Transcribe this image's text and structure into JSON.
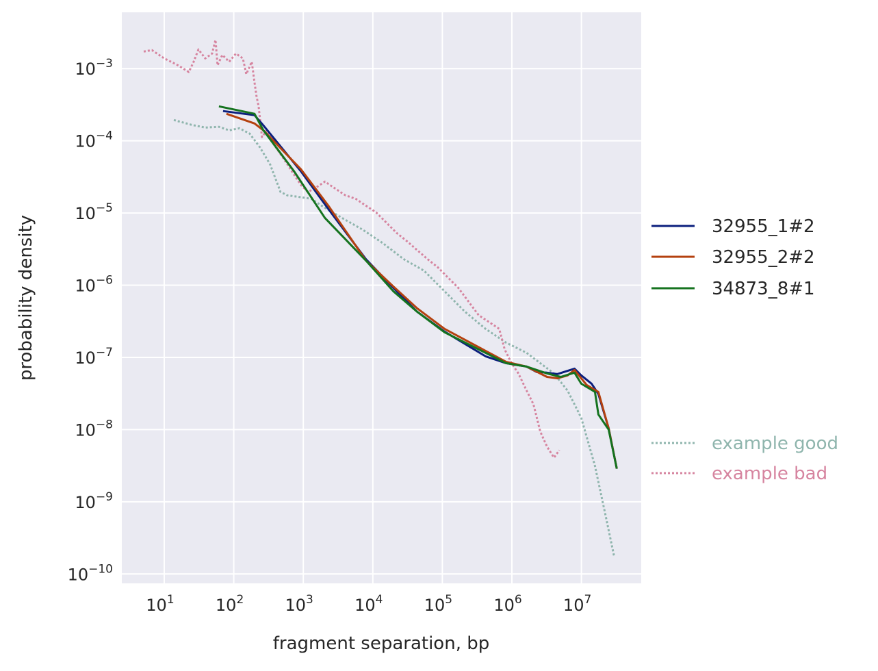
{
  "chart_data": {
    "type": "line",
    "xscale": "log",
    "yscale": "log",
    "xlabel": "fragment separation, bp",
    "ylabel": "probability density",
    "xlim_log10": [
      0.39,
      7.86
    ],
    "ylim_log10": [
      -10.13,
      -2.22
    ],
    "grid": true,
    "legend_placement": "outside-right",
    "tick_base": "10",
    "x_tick_exponents": [
      "1",
      "2",
      "3",
      "4",
      "5",
      "6",
      "7"
    ],
    "y_tick_exponents": [
      "−3",
      "−4",
      "−5",
      "−6",
      "−7",
      "−8",
      "−9",
      "−10"
    ],
    "series": [
      {
        "name": "32955_1#2",
        "color": "#0b1f7d",
        "style": "solid",
        "log10_x": [
          1.846,
          2.298,
          2.426,
          2.967,
          3.36,
          3.9,
          4.294,
          4.638,
          5.031,
          5.621,
          5.916,
          6.211,
          6.359,
          6.506,
          6.654,
          6.9,
          6.998,
          7.146,
          7.244,
          7.392,
          7.509
        ],
        "log10_y": [
          -3.588,
          -3.645,
          -3.787,
          -4.423,
          -4.945,
          -5.638,
          -6.036,
          -6.368,
          -6.643,
          -6.985,
          -7.08,
          -7.127,
          -7.203,
          -7.212,
          -7.231,
          -7.156,
          -7.25,
          -7.364,
          -7.507,
          -7.981,
          -8.541
        ]
      },
      {
        "name": "32955_2#2",
        "color": "#b4410f",
        "style": "solid",
        "log10_x": [
          1.895,
          2.298,
          2.426,
          2.967,
          3.36,
          3.9,
          4.294,
          4.638,
          5.031,
          5.621,
          5.916,
          6.211,
          6.506,
          6.654,
          6.801,
          6.9,
          7.077,
          7.244,
          7.392,
          7.509
        ],
        "log10_y": [
          -3.626,
          -3.759,
          -3.854,
          -4.395,
          -4.898,
          -5.657,
          -6.017,
          -6.32,
          -6.605,
          -6.909,
          -7.061,
          -7.127,
          -7.27,
          -7.289,
          -7.25,
          -7.175,
          -7.383,
          -7.478,
          -7.981,
          -8.541
        ]
      },
      {
        "name": "34873_8#1",
        "color": "#15731f",
        "style": "solid",
        "log10_x": [
          1.787,
          2.298,
          2.426,
          2.868,
          3.311,
          3.9,
          4.294,
          4.638,
          5.031,
          5.621,
          5.916,
          6.211,
          6.506,
          6.703,
          6.9,
          6.998,
          7.195,
          7.244,
          7.392,
          7.509
        ],
        "log10_y": [
          -3.522,
          -3.626,
          -3.854,
          -4.423,
          -5.068,
          -5.657,
          -6.083,
          -6.368,
          -6.652,
          -6.937,
          -7.08,
          -7.127,
          -7.222,
          -7.27,
          -7.212,
          -7.364,
          -7.478,
          -7.791,
          -8.0,
          -8.541
        ]
      },
      {
        "name": "example good",
        "color": "#8fb5ad",
        "style": "dotted",
        "log10_x": [
          1.138,
          1.393,
          1.59,
          1.787,
          1.934,
          2.082,
          2.229,
          2.377,
          2.524,
          2.672,
          2.77,
          2.917,
          3.114,
          3.262,
          3.557,
          3.851,
          4.147,
          4.441,
          4.736,
          5.031,
          5.326,
          5.621,
          5.916,
          6.211,
          6.408,
          6.605,
          6.801,
          6.998,
          7.195,
          7.342,
          7.47
        ],
        "log10_y": [
          -3.712,
          -3.778,
          -3.816,
          -3.806,
          -3.854,
          -3.826,
          -3.901,
          -4.091,
          -4.328,
          -4.708,
          -4.755,
          -4.774,
          -4.803,
          -4.897,
          -5.068,
          -5.229,
          -5.419,
          -5.637,
          -5.799,
          -6.083,
          -6.368,
          -6.605,
          -6.795,
          -6.937,
          -7.08,
          -7.222,
          -7.46,
          -7.839,
          -8.503,
          -9.167,
          -9.755
        ]
      },
      {
        "name": "example bad",
        "color": "#d6849f",
        "style": "dotted",
        "log10_x": [
          0.705,
          0.823,
          1.0,
          1.197,
          1.354,
          1.423,
          1.492,
          1.59,
          1.688,
          1.737,
          1.767,
          1.836,
          1.934,
          2.032,
          2.131,
          2.18,
          2.259,
          2.298,
          2.327,
          2.357,
          2.406,
          2.475,
          2.573,
          2.721,
          2.868,
          2.967,
          3.065,
          3.163,
          3.311,
          3.458,
          3.606,
          3.753,
          3.9,
          4.048,
          4.196,
          4.343,
          4.491,
          4.638,
          4.786,
          4.933,
          5.081,
          5.228,
          5.376,
          5.523,
          5.671,
          5.818,
          5.897,
          5.995,
          6.093,
          6.211,
          6.31,
          6.408,
          6.506,
          6.605,
          6.683
        ],
        "log10_y": [
          -2.763,
          -2.744,
          -2.858,
          -2.953,
          -3.047,
          -2.905,
          -2.734,
          -2.858,
          -2.791,
          -2.602,
          -2.953,
          -2.81,
          -2.905,
          -2.791,
          -2.858,
          -3.076,
          -2.905,
          -3.19,
          -3.38,
          -3.522,
          -3.949,
          -3.854,
          -4.044,
          -4.252,
          -4.471,
          -4.613,
          -4.708,
          -4.66,
          -4.565,
          -4.66,
          -4.755,
          -4.803,
          -4.897,
          -4.992,
          -5.135,
          -5.277,
          -5.391,
          -5.514,
          -5.638,
          -5.751,
          -5.894,
          -6.036,
          -6.226,
          -6.416,
          -6.51,
          -6.605,
          -6.89,
          -7.08,
          -7.222,
          -7.459,
          -7.649,
          -8.028,
          -8.237,
          -8.389,
          -8.285
        ]
      }
    ]
  }
}
